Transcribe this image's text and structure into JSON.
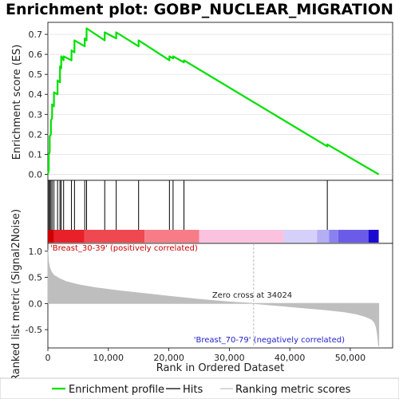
{
  "title": "Enrichment plot: GOBP_NUCLEAR_MIGRATION",
  "colors": {
    "enrichment_line": "#00e000",
    "hit_line": "#000000",
    "metric_fill": "#bebebe",
    "positive_label": "#cc0000",
    "negative_label": "#2222cc",
    "zero_cross_line": "#aaaaaa"
  },
  "legend": {
    "enrichment_profile": "Enrichment profile",
    "hits": "Hits",
    "ranking_metric": "Ranking metric scores"
  },
  "annotations": {
    "positive": "'Breast_30-39' (positively correlated)",
    "negative": "'Breast_70-79' (negatively correlated)",
    "zero_cross": "Zero cross at 34024"
  },
  "chart_data": [
    {
      "type": "line",
      "name": "enrichment-score-panel",
      "ylabel": "Enrichment score (ES)",
      "xlim": [
        0,
        57000
      ],
      "ylim": [
        -0.03,
        0.76
      ],
      "yticks": [
        0.0,
        0.1,
        0.2,
        0.3,
        0.4,
        0.5,
        0.6,
        0.7
      ],
      "ytick_labels": [
        "0.0",
        "0.1",
        "0.2",
        "0.3",
        "0.4",
        "0.5",
        "0.6",
        "0.7"
      ],
      "grid": true,
      "series": [
        {
          "x": [
            0,
            150,
            150,
            300,
            300,
            500,
            500,
            700,
            700,
            1000,
            1000,
            1600,
            1600,
            2000,
            2000,
            2200,
            2200,
            2600,
            2600,
            3900,
            3900,
            4400,
            4400,
            6100,
            6100,
            6400,
            6400,
            9400,
            9400,
            11300,
            11300,
            15000,
            15000,
            20100,
            20100,
            20700,
            20700,
            22500,
            22500,
            46200,
            46200,
            54700
          ],
          "y": [
            0.0,
            0.02,
            0.1,
            0.11,
            0.19,
            0.2,
            0.27,
            0.28,
            0.35,
            0.34,
            0.41,
            0.4,
            0.47,
            0.46,
            0.54,
            0.53,
            0.59,
            0.57,
            0.59,
            0.57,
            0.62,
            0.61,
            0.67,
            0.64,
            0.68,
            0.67,
            0.73,
            0.67,
            0.71,
            0.68,
            0.71,
            0.64,
            0.67,
            0.57,
            0.59,
            0.58,
            0.59,
            0.56,
            0.57,
            0.14,
            0.15,
            0.0
          ]
        }
      ]
    },
    {
      "type": "scatter",
      "name": "hits-panel",
      "hits_x": [
        150,
        300,
        500,
        700,
        1000,
        1600,
        2000,
        2200,
        2600,
        3900,
        4400,
        6100,
        6400,
        9400,
        11300,
        15000,
        20100,
        20700,
        22500,
        46200
      ],
      "heatmap_segments": [
        {
          "from": 0,
          "to": 1000,
          "color": "#cc0000"
        },
        {
          "from": 1000,
          "to": 6000,
          "color": "#e8202a"
        },
        {
          "from": 6000,
          "to": 16000,
          "color": "#f04850"
        },
        {
          "from": 16000,
          "to": 25000,
          "color": "#f87c88"
        },
        {
          "from": 25000,
          "to": 39000,
          "color": "#fbc2e0"
        },
        {
          "from": 39000,
          "to": 44500,
          "color": "#d4d0fa"
        },
        {
          "from": 44500,
          "to": 46500,
          "color": "#b4aef4"
        },
        {
          "from": 46500,
          "to": 48000,
          "color": "#8a80ee"
        },
        {
          "from": 48000,
          "to": 53000,
          "color": "#6a5ce8"
        },
        {
          "from": 53000,
          "to": 54700,
          "color": "#1a0ad0"
        }
      ]
    },
    {
      "type": "area",
      "name": "ranked-metric-panel",
      "xlabel": "Rank in Ordered Dataset",
      "ylabel": "Ranked list metric (Signal2Noise)",
      "xlim": [
        0,
        57000
      ],
      "ylim": [
        -0.85,
        1.15
      ],
      "yticks": [
        -0.5,
        0.0,
        0.5,
        1.0
      ],
      "ytick_labels": [
        "-0.5",
        "0.0",
        "0.5",
        "1.0"
      ],
      "xticks": [
        0,
        10000,
        20000,
        30000,
        40000,
        50000
      ],
      "xtick_labels": [
        "0",
        "10,000",
        "20,000",
        "30,000",
        "40,000",
        "50,000"
      ],
      "zero_cross": 34024,
      "x": [
        0,
        100,
        300,
        600,
        1000,
        2000,
        3000,
        5000,
        8000,
        12000,
        16000,
        20000,
        25000,
        30000,
        34024,
        38000,
        42000,
        46000,
        49000,
        51000,
        52500,
        53500,
        54000,
        54300,
        54500,
        54700
      ],
      "values": [
        1.02,
        0.8,
        0.68,
        0.6,
        0.54,
        0.47,
        0.42,
        0.36,
        0.3,
        0.24,
        0.19,
        0.14,
        0.08,
        0.03,
        0.0,
        -0.04,
        -0.08,
        -0.12,
        -0.16,
        -0.2,
        -0.25,
        -0.3,
        -0.36,
        -0.45,
        -0.6,
        -0.82
      ]
    }
  ]
}
